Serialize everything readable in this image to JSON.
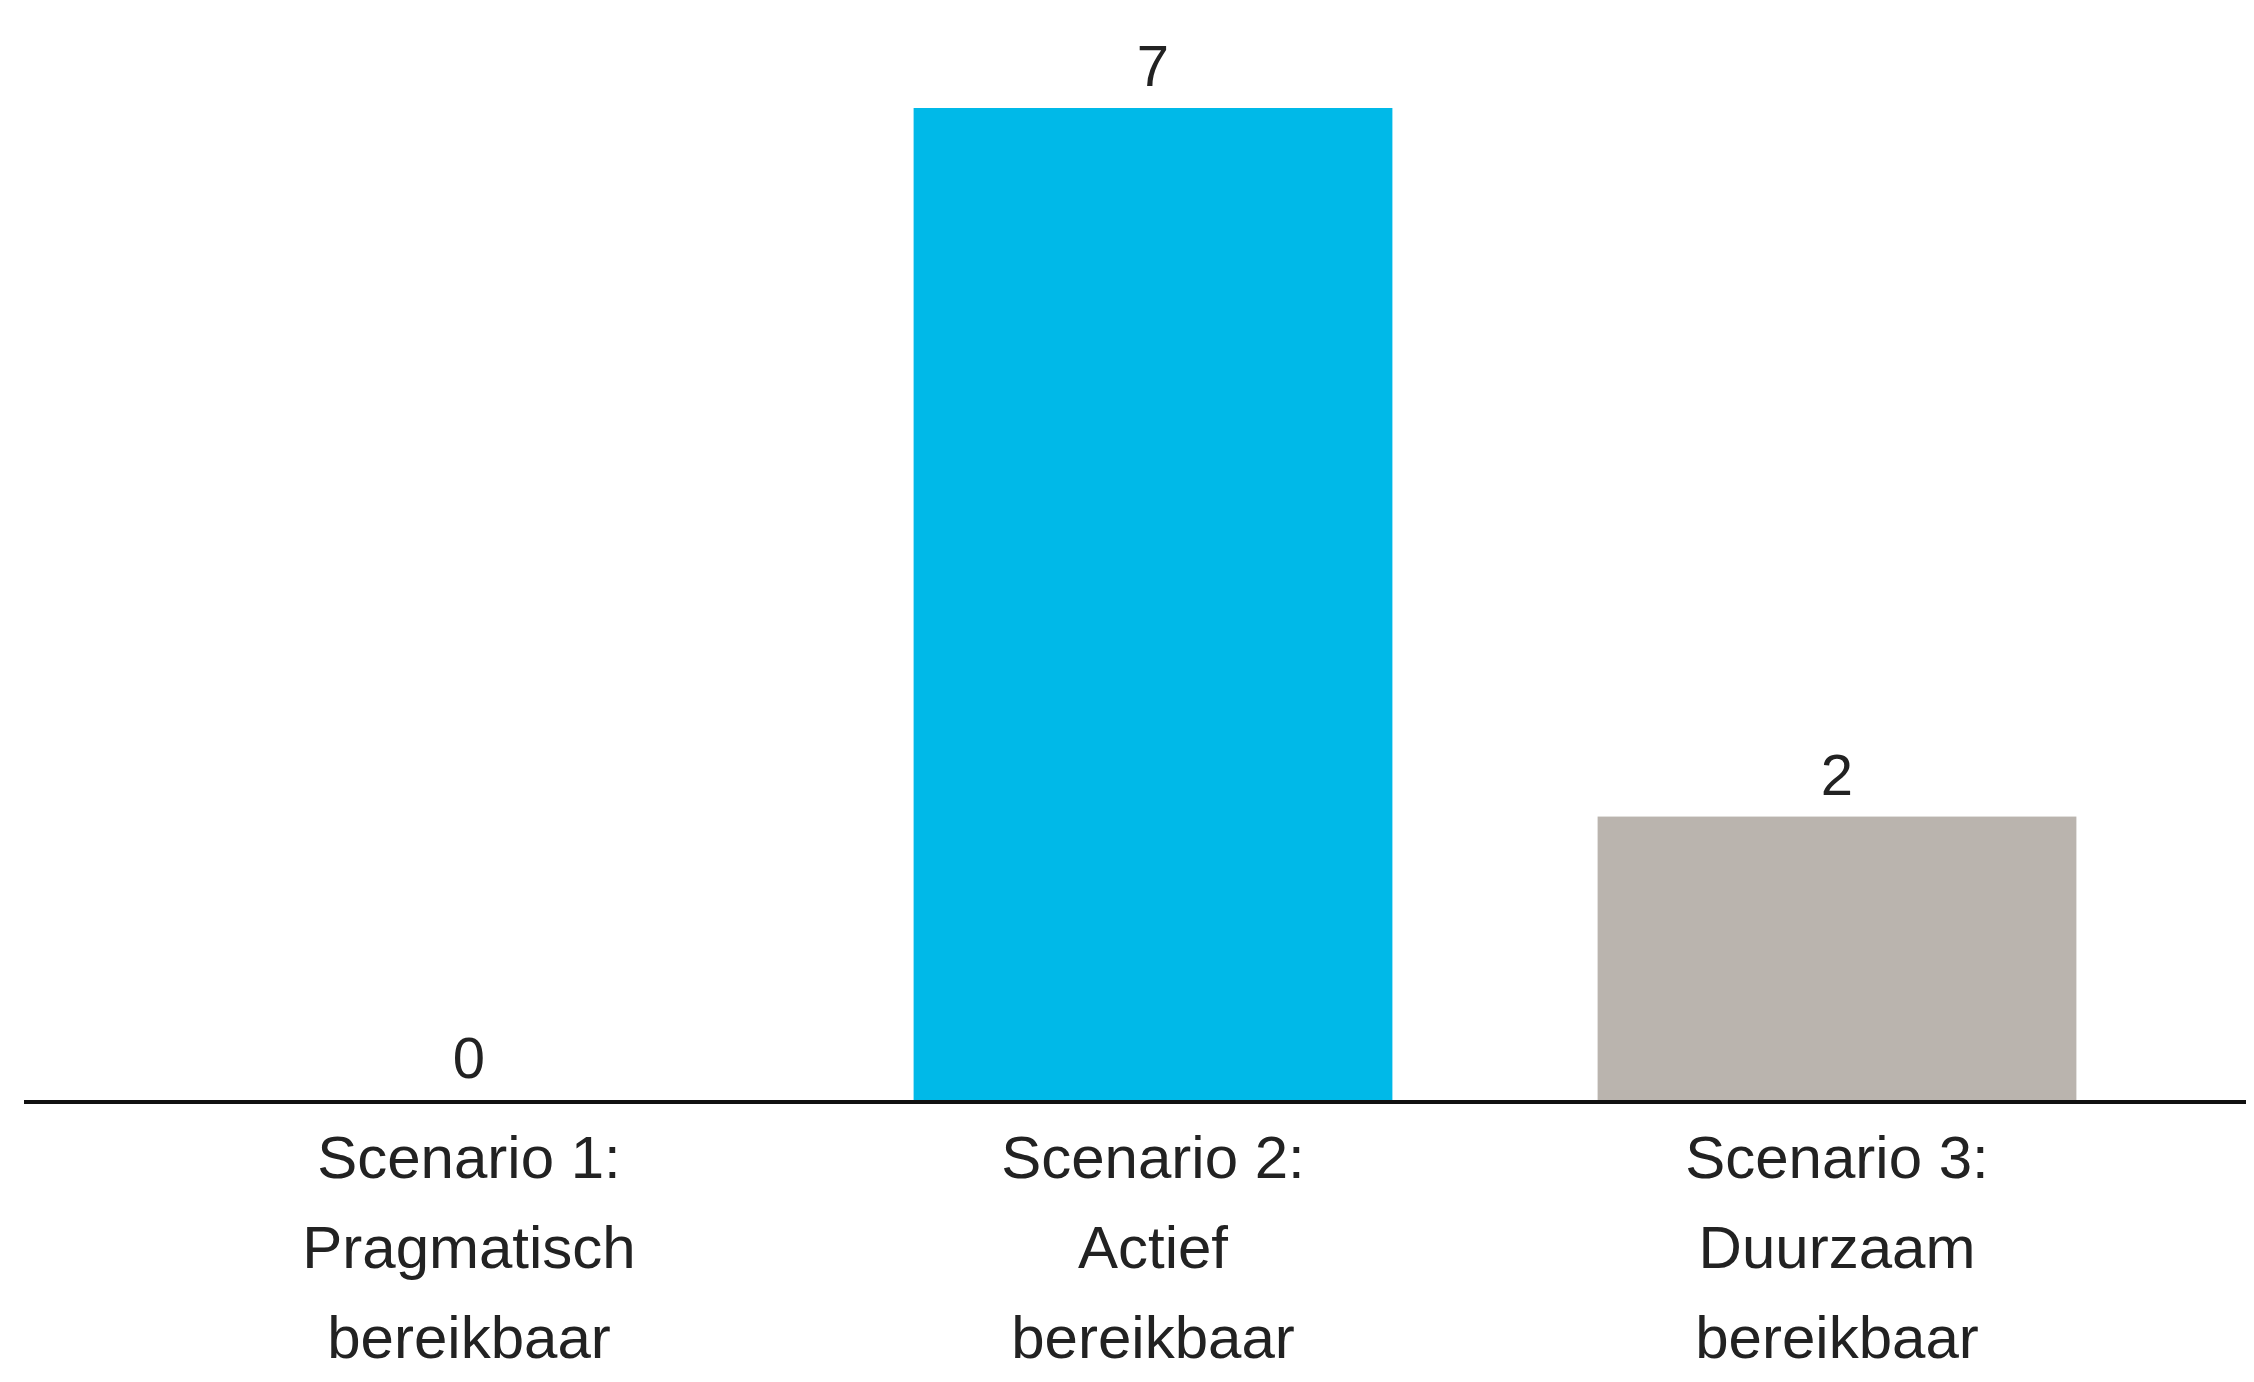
{
  "chart_data": {
    "type": "bar",
    "categories": [
      "Scenario 1: Pragmatisch bereikbaar",
      "Scenario 2: Actief bereikbaar",
      "Scenario 3: Duurzaam bereikbaar"
    ],
    "values": [
      0,
      7,
      2
    ],
    "colors": [
      "#00b9e8",
      "#00b9e8",
      "#bab4ae"
    ],
    "data_labels": true
  }
}
